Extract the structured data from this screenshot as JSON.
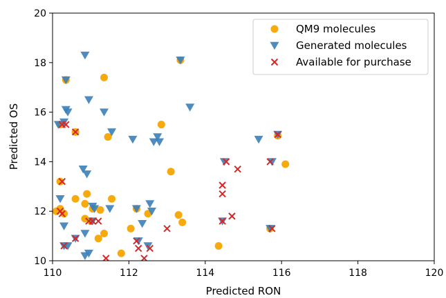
{
  "chart_data": {
    "type": "scatter",
    "title": "",
    "xlabel": "Predicted RON",
    "ylabel": "Predicted OS",
    "xlim": [
      110,
      120
    ],
    "ylim": [
      10,
      20
    ],
    "xticks": [
      "110",
      "112",
      "114",
      "116",
      "118",
      "120"
    ],
    "yticks": [
      "10",
      "12",
      "14",
      "16",
      "18",
      "20"
    ],
    "grid": false,
    "legend_position": "top-right",
    "series": [
      {
        "name": "QM9 molecules",
        "marker": "circle",
        "color": "#f5a500",
        "points": [
          [
            110.1,
            12.0
          ],
          [
            110.2,
            12.1
          ],
          [
            110.3,
            11.9
          ],
          [
            110.2,
            15.5
          ],
          [
            110.2,
            13.2
          ],
          [
            110.35,
            17.3
          ],
          [
            110.6,
            12.5
          ],
          [
            110.6,
            15.2
          ],
          [
            110.85,
            12.3
          ],
          [
            110.9,
            12.7
          ],
          [
            110.85,
            11.7
          ],
          [
            111.0,
            11.6
          ],
          [
            111.05,
            12.1
          ],
          [
            111.25,
            12.05
          ],
          [
            111.2,
            10.9
          ],
          [
            111.35,
            17.4
          ],
          [
            111.35,
            11.1
          ],
          [
            111.45,
            15.0
          ],
          [
            111.55,
            12.5
          ],
          [
            111.8,
            10.3
          ],
          [
            112.05,
            11.3
          ],
          [
            112.2,
            12.1
          ],
          [
            112.5,
            11.9
          ],
          [
            112.85,
            15.5
          ],
          [
            113.1,
            13.6
          ],
          [
            113.3,
            11.85
          ],
          [
            113.4,
            11.55
          ],
          [
            113.35,
            18.1
          ],
          [
            114.35,
            10.6
          ],
          [
            115.7,
            11.3
          ],
          [
            115.9,
            15.05
          ],
          [
            116.1,
            13.9
          ]
        ]
      },
      {
        "name": "Generated molecules",
        "marker": "triangle-down",
        "color": "#3b7fb8",
        "points": [
          [
            110.15,
            15.5
          ],
          [
            110.3,
            15.6
          ],
          [
            110.35,
            16.1
          ],
          [
            110.4,
            16.0
          ],
          [
            110.35,
            17.3
          ],
          [
            110.3,
            11.4
          ],
          [
            110.2,
            12.5
          ],
          [
            110.3,
            10.6
          ],
          [
            110.4,
            10.6
          ],
          [
            110.6,
            10.9
          ],
          [
            110.8,
            13.7
          ],
          [
            110.9,
            13.5
          ],
          [
            110.85,
            18.3
          ],
          [
            110.95,
            16.5
          ],
          [
            110.85,
            11.1
          ],
          [
            110.85,
            10.2
          ],
          [
            110.95,
            10.3
          ],
          [
            111.05,
            12.2
          ],
          [
            111.1,
            12.1
          ],
          [
            111.05,
            11.6
          ],
          [
            111.35,
            16.0
          ],
          [
            111.55,
            15.2
          ],
          [
            111.5,
            12.1
          ],
          [
            112.1,
            14.9
          ],
          [
            112.2,
            12.1
          ],
          [
            112.25,
            10.8
          ],
          [
            112.35,
            11.5
          ],
          [
            112.5,
            10.6
          ],
          [
            112.55,
            12.3
          ],
          [
            112.6,
            12.0
          ],
          [
            112.65,
            14.8
          ],
          [
            112.8,
            14.8
          ],
          [
            112.75,
            15.0
          ],
          [
            113.35,
            18.1
          ],
          [
            113.6,
            16.2
          ],
          [
            114.45,
            11.6
          ],
          [
            114.5,
            14.0
          ],
          [
            115.4,
            14.9
          ],
          [
            115.75,
            14.0
          ],
          [
            115.7,
            11.3
          ],
          [
            115.9,
            15.1
          ]
        ]
      },
      {
        "name": "Available for purchase",
        "marker": "x",
        "color": "#d62728",
        "points": [
          [
            110.25,
            13.2
          ],
          [
            110.25,
            15.5
          ],
          [
            110.35,
            15.5
          ],
          [
            110.2,
            12.0
          ],
          [
            110.25,
            11.9
          ],
          [
            110.3,
            10.6
          ],
          [
            110.6,
            15.2
          ],
          [
            110.6,
            10.9
          ],
          [
            110.95,
            11.6
          ],
          [
            111.05,
            11.6
          ],
          [
            111.2,
            11.6
          ],
          [
            111.4,
            10.1
          ],
          [
            112.2,
            10.8
          ],
          [
            112.25,
            10.5
          ],
          [
            112.4,
            10.1
          ],
          [
            112.55,
            10.5
          ],
          [
            113.0,
            11.3
          ],
          [
            114.45,
            13.05
          ],
          [
            114.45,
            12.7
          ],
          [
            114.45,
            11.6
          ],
          [
            114.55,
            14.0
          ],
          [
            114.7,
            11.8
          ],
          [
            114.85,
            13.7
          ],
          [
            115.7,
            14.0
          ],
          [
            115.75,
            11.3
          ],
          [
            115.9,
            15.1
          ]
        ]
      }
    ]
  }
}
